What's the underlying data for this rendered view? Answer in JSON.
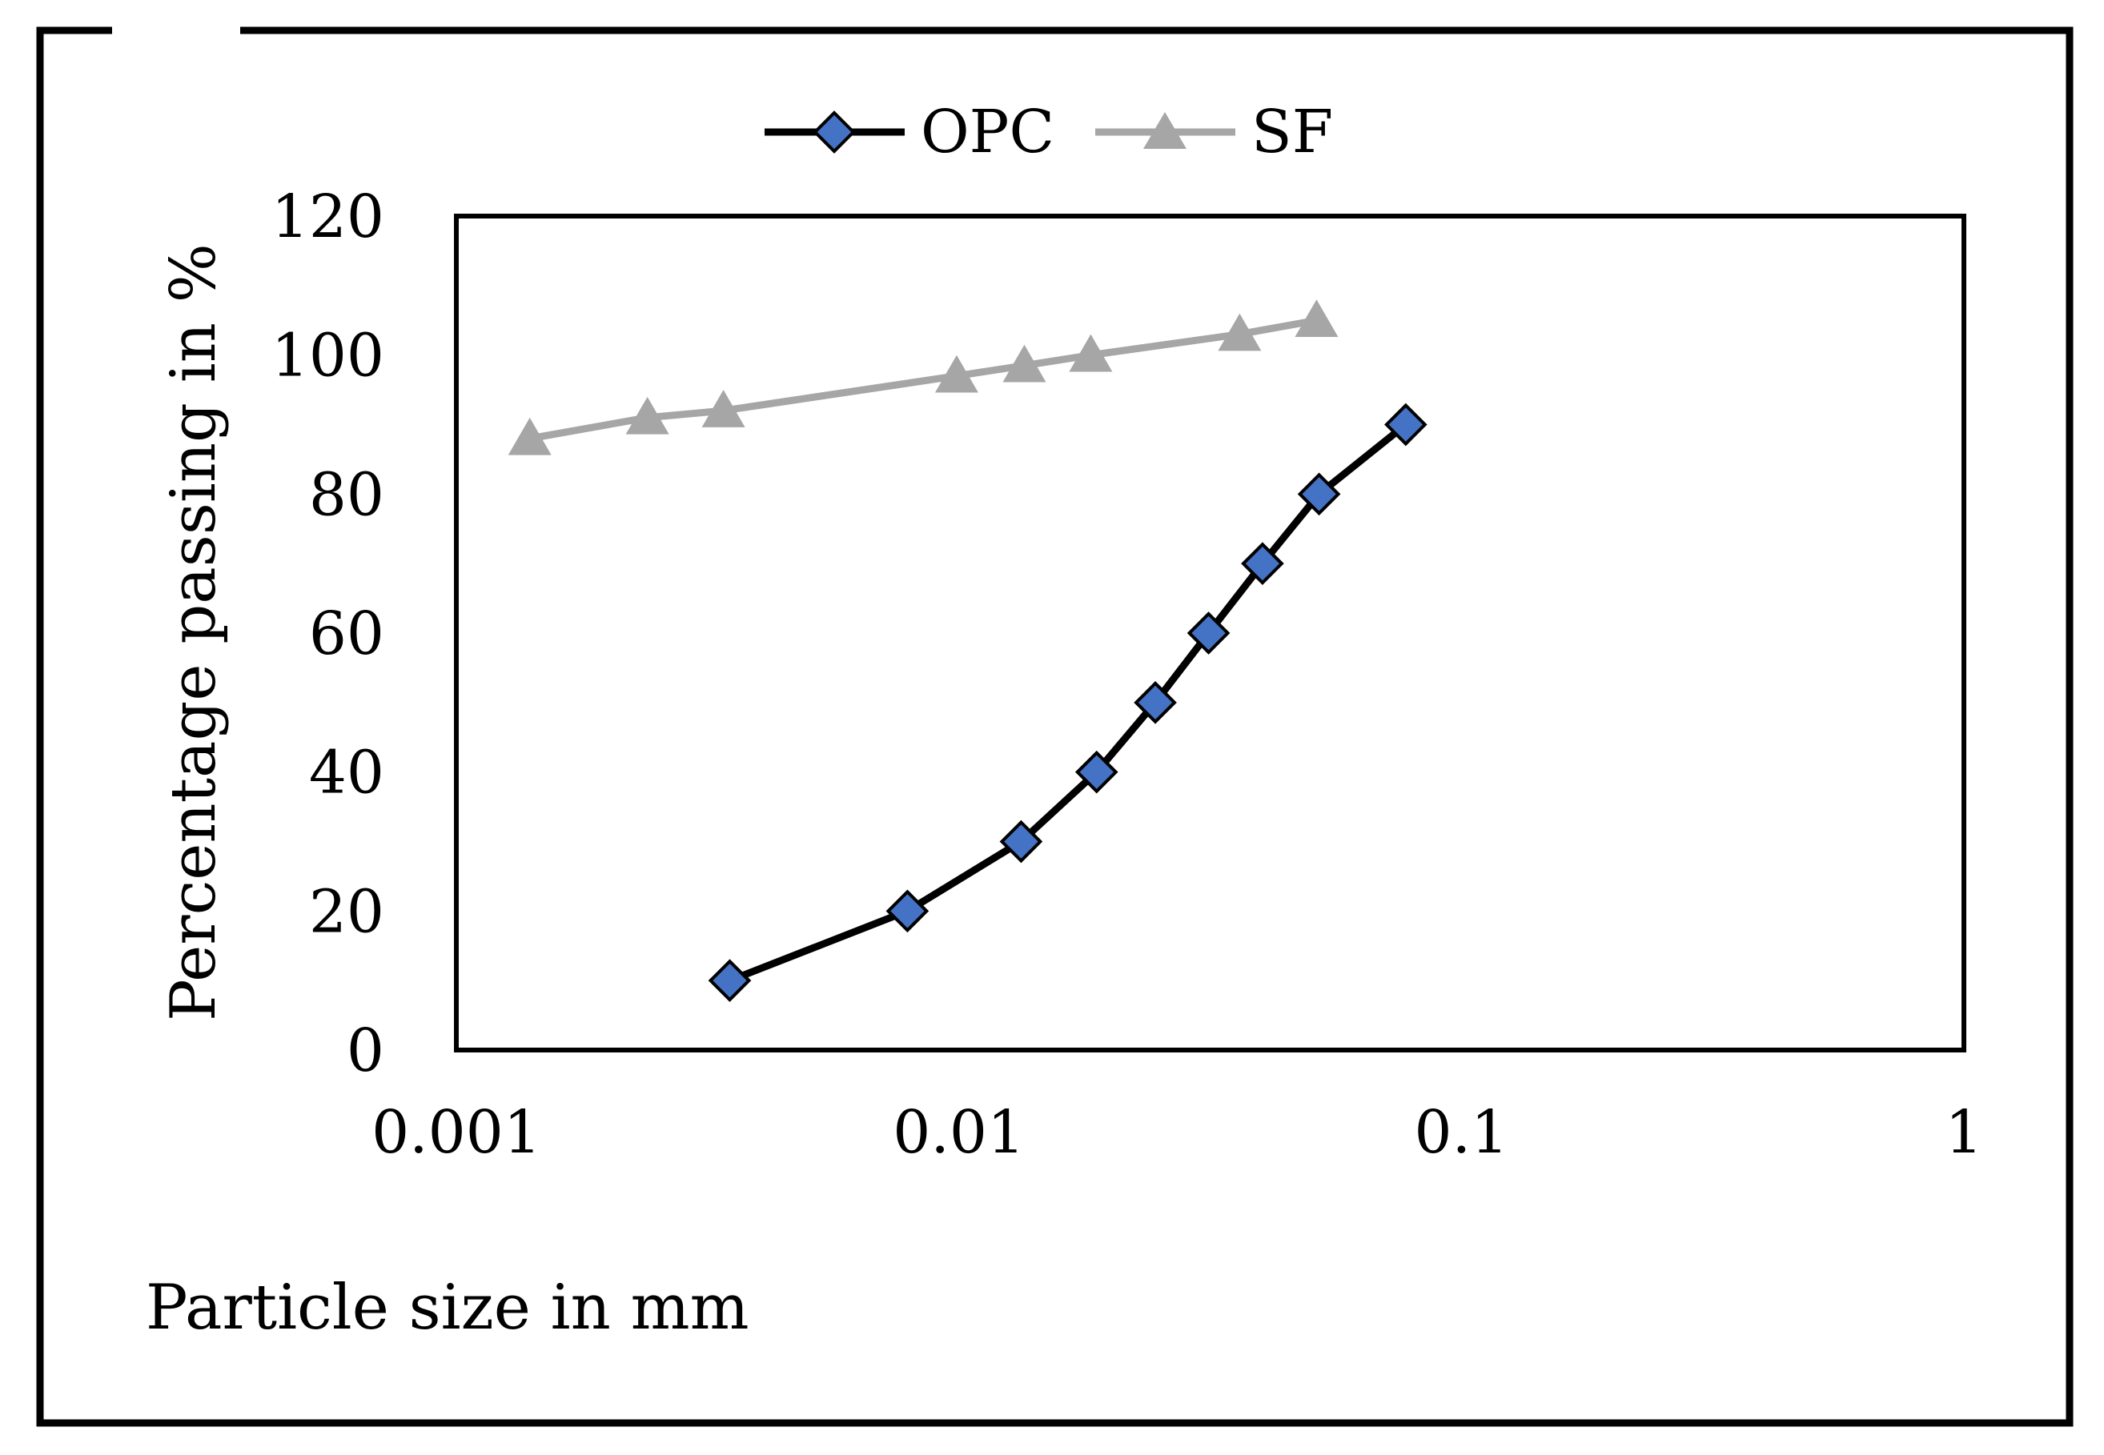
{
  "chart_data": {
    "type": "line",
    "x_scale": "log",
    "xlabel": "Particle size in mm",
    "ylabel": "Percentage passing  in %",
    "xlim": [
      0.001,
      1
    ],
    "ylim": [
      0,
      120
    ],
    "x_ticks": [
      0.001,
      0.01,
      0.1,
      1
    ],
    "x_tick_labels": [
      "0.001",
      "0.01",
      "0.1",
      "1"
    ],
    "y_ticks": [
      0,
      20,
      40,
      60,
      80,
      100,
      120
    ],
    "y_tick_labels": [
      "0",
      "20",
      "40",
      "60",
      "80",
      "100",
      "120"
    ],
    "grid": false,
    "legend_position": "top-center",
    "series": [
      {
        "name": "OPC",
        "color": "#000000",
        "marker": "diamond",
        "marker_color": "#4472C4",
        "x": [
          0.0035,
          0.0079,
          0.0133,
          0.0188,
          0.0246,
          0.0314,
          0.0402,
          0.0521,
          0.0775
        ],
        "y": [
          10,
          20,
          30,
          40,
          50,
          60,
          70,
          80,
          90
        ]
      },
      {
        "name": "SF",
        "color": "#A6A6A6",
        "marker": "triangle",
        "marker_color": "#A6A6A6",
        "x": [
          0.0014,
          0.0024,
          0.0034,
          0.0099,
          0.0135,
          0.0183,
          0.0362,
          0.0515
        ],
        "y": [
          88,
          91,
          92,
          97,
          98.5,
          100,
          103,
          105
        ]
      }
    ]
  }
}
